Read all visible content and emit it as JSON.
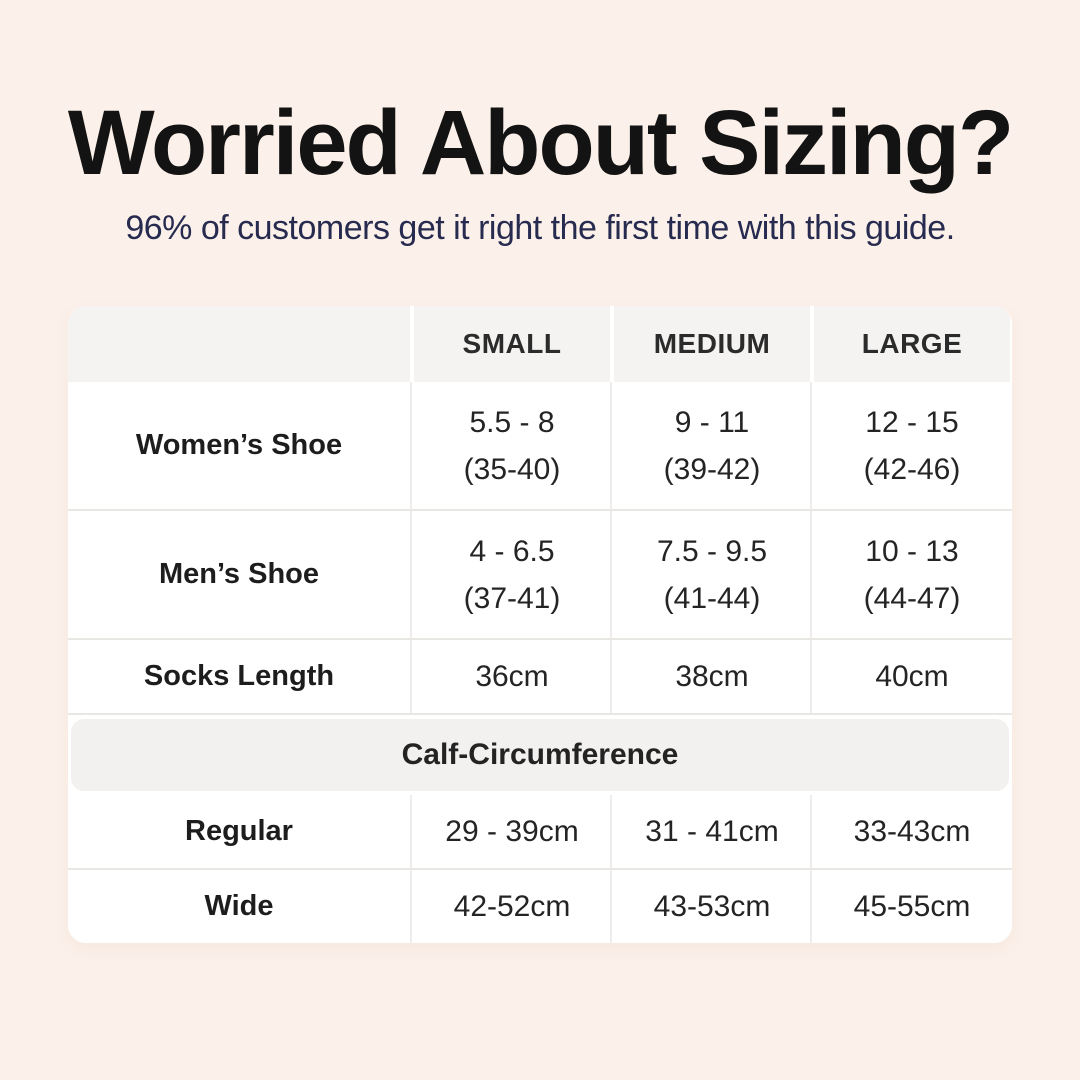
{
  "page": {
    "background_color": "#fcf1ea",
    "title": "Worried About Sizing?",
    "title_color": "#131313",
    "subtitle": "96% of customers get it right the first time with this guide.",
    "subtitle_color": "#272b4f"
  },
  "table": {
    "header_bg_color": "#f4f3f1",
    "body_bg_color": "#ffffff",
    "columns": [
      "",
      "SMALL",
      "MEDIUM",
      "LARGE"
    ],
    "rows": [
      {
        "label": "Women’s Shoe",
        "cells": [
          {
            "line1": "5.5 - 8",
            "line2": "(35-40)"
          },
          {
            "line1": "9 - 11",
            "line2": "(39-42)"
          },
          {
            "line1": "12 - 15",
            "line2": "(42-46)"
          }
        ]
      },
      {
        "label": "Men’s Shoe",
        "cells": [
          {
            "line1": "4 - 6.5",
            "line2": "(37-41)"
          },
          {
            "line1": "7.5 - 9.5",
            "line2": "(41-44)"
          },
          {
            "line1": "10 - 13",
            "line2": "(44-47)"
          }
        ]
      },
      {
        "label": "Socks Length",
        "cells": [
          {
            "line1": "36cm"
          },
          {
            "line1": "38cm"
          },
          {
            "line1": "40cm"
          }
        ]
      }
    ],
    "section_header": "Calf-Circumference",
    "section_rows": [
      {
        "label": "Regular",
        "cells": [
          {
            "line1": "29 - 39cm"
          },
          {
            "line1": "31 - 41cm"
          },
          {
            "line1": "33-43cm"
          }
        ]
      },
      {
        "label": "Wide",
        "cells": [
          {
            "line1": "42-52cm"
          },
          {
            "line1": "43-53cm"
          },
          {
            "line1": "45-55cm"
          }
        ]
      }
    ]
  },
  "chart_data": {
    "type": "table",
    "title": "Worried About Sizing?",
    "subtitle": "96% of customers get it right the first time with this guide.",
    "columns": [
      "",
      "SMALL",
      "MEDIUM",
      "LARGE"
    ],
    "rows": [
      [
        "Women’s Shoe",
        "5.5 - 8 (35-40)",
        "9 - 11 (39-42)",
        "12 - 15 (42-46)"
      ],
      [
        "Men’s Shoe",
        "4 - 6.5 (37-41)",
        "7.5 - 9.5 (41-44)",
        "10 - 13 (44-47)"
      ],
      [
        "Socks Length",
        "36cm",
        "38cm",
        "40cm"
      ],
      [
        "Regular (Calf-Circumference)",
        "29 - 39cm",
        "31 - 41cm",
        "33-43cm"
      ],
      [
        "Wide (Calf-Circumference)",
        "42-52cm",
        "43-53cm",
        "45-55cm"
      ]
    ],
    "section_header_row": "Calf-Circumference",
    "layout": "section header band between Socks Length row and Regular row"
  }
}
